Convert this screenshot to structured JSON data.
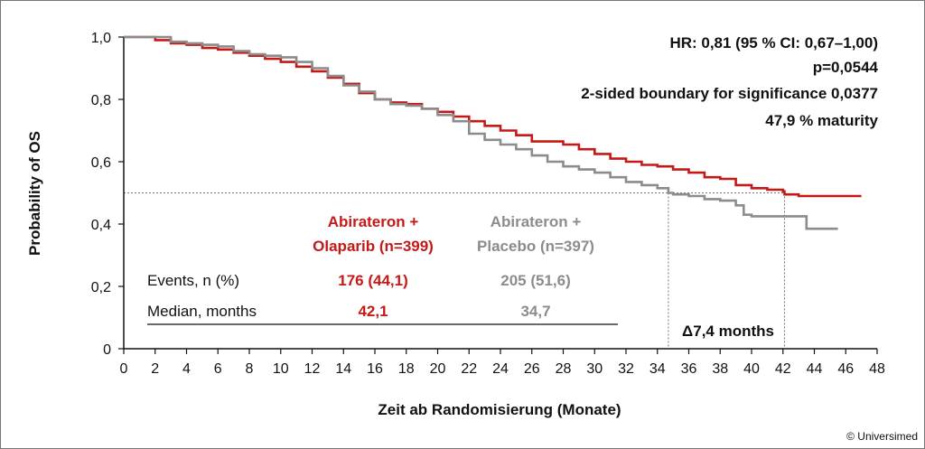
{
  "copyright": "© Universimed",
  "stats": [
    "HR: 0,81 (95 % CI: 0,67–1,00)",
    "p=0,0544",
    "2-sided boundary for significance 0,0377",
    "47,9 % maturity"
  ],
  "table": {
    "headers": [
      [
        "Abirateron +",
        "Olaparib (n=399)"
      ],
      [
        "Abirateron +",
        "Placebo (n=397)"
      ]
    ],
    "rows": [
      {
        "label": "Events, n (%)",
        "values": [
          "176 (44,1)",
          "205 (51,6)"
        ]
      },
      {
        "label": "Median, months",
        "values": [
          "42,1",
          "34,7"
        ]
      }
    ]
  },
  "delta_label": "Δ7,4 months",
  "colors": {
    "olaparib": "#c41a17",
    "placebo": "#8c8c8c",
    "axis": "#111111",
    "reference": "#777777"
  },
  "chart_data": {
    "type": "line",
    "subtype": "kaplan-meier step curve",
    "xlabel": "Zeit ab Randomisierung (Monate)",
    "ylabel": "Probability of OS",
    "xlim": [
      0,
      48
    ],
    "ylim": [
      0,
      1.0
    ],
    "xticks": [
      0,
      2,
      4,
      6,
      8,
      10,
      12,
      14,
      16,
      18,
      20,
      22,
      24,
      26,
      28,
      30,
      32,
      34,
      36,
      38,
      40,
      42,
      44,
      46,
      48
    ],
    "xtick_labels": [
      "0",
      "2",
      "4",
      "6",
      "8",
      "10",
      "12",
      "14",
      "16",
      "18",
      "20",
      "22",
      "24",
      "26",
      "28",
      "30",
      "32",
      "34",
      "36",
      "38",
      "40",
      "42",
      "44",
      "46",
      "48"
    ],
    "yticks": [
      0,
      0.2,
      0.4,
      0.6,
      0.8,
      1.0
    ],
    "ytick_labels": [
      "0",
      "0,2",
      "0,4",
      "0,6",
      "0,8",
      "1,0"
    ],
    "grid": false,
    "legend": "inline table",
    "median_reference": {
      "y": 0.5,
      "x_values": [
        34.7,
        42.1
      ]
    },
    "series": [
      {
        "name": "Abirateron + Olaparib (n=399)",
        "color": "#c41a17",
        "x": [
          0,
          1,
          2,
          3,
          4,
          5,
          6,
          7,
          8,
          9,
          10,
          11,
          12,
          13,
          14,
          15,
          16,
          17,
          18,
          19,
          20,
          21,
          22,
          23,
          24,
          25,
          26,
          27,
          28,
          29,
          30,
          31,
          32,
          33,
          34,
          35,
          36,
          37,
          38,
          39,
          40,
          41,
          42,
          42.1,
          43,
          44,
          45,
          46,
          47
        ],
        "y": [
          1.0,
          1.0,
          0.99,
          0.98,
          0.975,
          0.965,
          0.96,
          0.95,
          0.94,
          0.93,
          0.92,
          0.905,
          0.89,
          0.87,
          0.85,
          0.82,
          0.8,
          0.79,
          0.785,
          0.77,
          0.76,
          0.745,
          0.73,
          0.715,
          0.7,
          0.685,
          0.665,
          0.665,
          0.655,
          0.64,
          0.625,
          0.61,
          0.6,
          0.59,
          0.585,
          0.575,
          0.565,
          0.55,
          0.545,
          0.525,
          0.515,
          0.51,
          0.505,
          0.495,
          0.49,
          0.49,
          0.49,
          0.49,
          0.49
        ]
      },
      {
        "name": "Abirateron + Placebo (n=397)",
        "color": "#8c8c8c",
        "x": [
          0,
          1,
          2,
          3,
          4,
          5,
          6,
          7,
          8,
          9,
          10,
          11,
          12,
          13,
          14,
          15,
          16,
          17,
          18,
          19,
          20,
          21,
          22,
          23,
          24,
          25,
          26,
          27,
          28,
          29,
          30,
          31,
          32,
          33,
          34,
          34.7,
          35,
          36,
          37,
          38,
          39,
          39.5,
          40,
          42,
          43.5,
          44,
          45.5
        ],
        "y": [
          1.0,
          1.0,
          1.0,
          0.985,
          0.98,
          0.975,
          0.97,
          0.955,
          0.945,
          0.94,
          0.935,
          0.92,
          0.9,
          0.875,
          0.845,
          0.825,
          0.8,
          0.785,
          0.78,
          0.77,
          0.75,
          0.73,
          0.69,
          0.67,
          0.655,
          0.64,
          0.62,
          0.6,
          0.585,
          0.575,
          0.565,
          0.55,
          0.535,
          0.525,
          0.515,
          0.5,
          0.495,
          0.49,
          0.48,
          0.475,
          0.46,
          0.43,
          0.425,
          0.425,
          0.385,
          0.385,
          0.385
        ]
      }
    ]
  }
}
